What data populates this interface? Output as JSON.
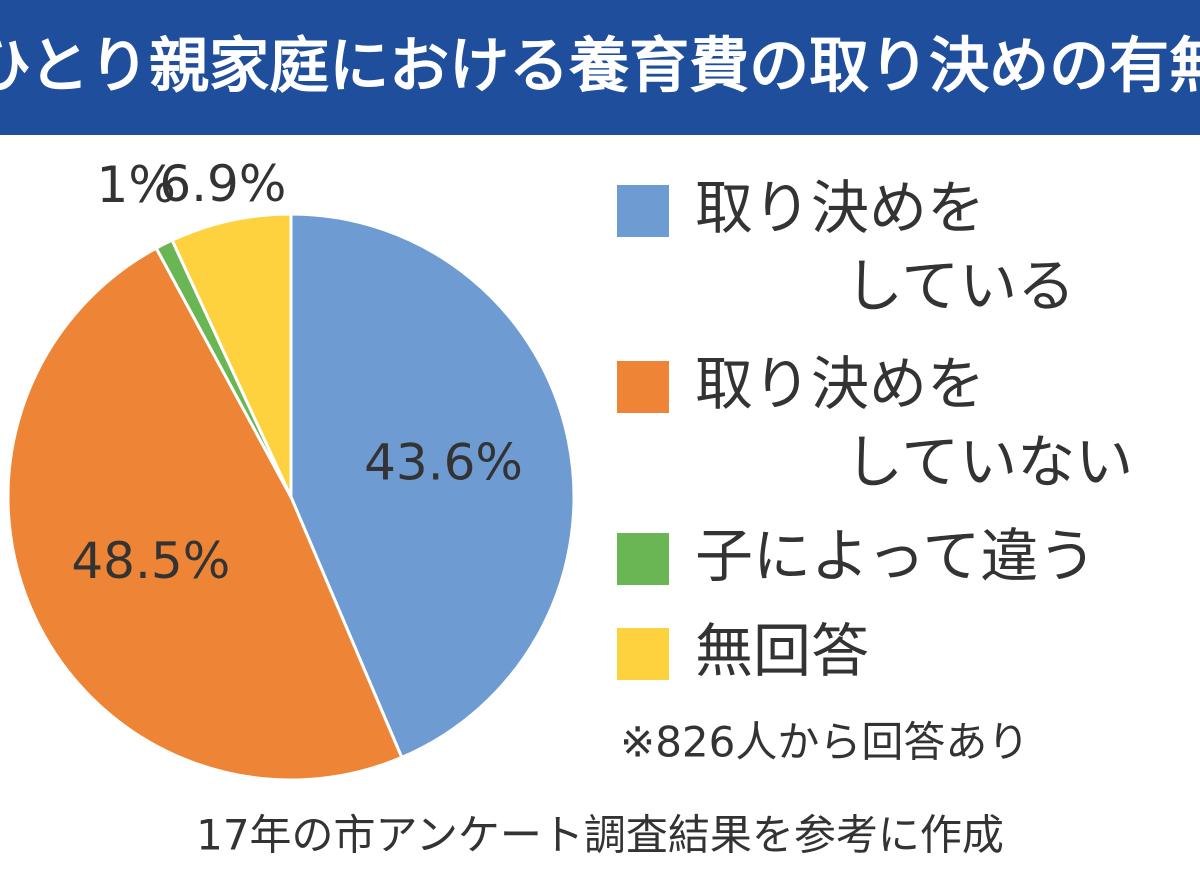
{
  "chart_data": {
    "type": "pie",
    "title": "ひとり親家庭における養育費の取り決めの有無",
    "categories": [
      [
        "取り決めを",
        "している"
      ],
      [
        "取り決めを",
        "していない"
      ],
      [
        "子によって違う"
      ],
      [
        "無回答"
      ]
    ],
    "values": [
      43.6,
      48.5,
      1,
      6.9
    ],
    "value_labels": [
      "43.6%",
      "48.5%",
      "1%",
      "6.9%"
    ],
    "colors": [
      "#6d9bd2",
      "#ee8536",
      "#6ab655",
      "#fdd23e"
    ],
    "note": "※826人から回答あり",
    "source": "17年の市アンケート調査結果を参考に作成"
  }
}
